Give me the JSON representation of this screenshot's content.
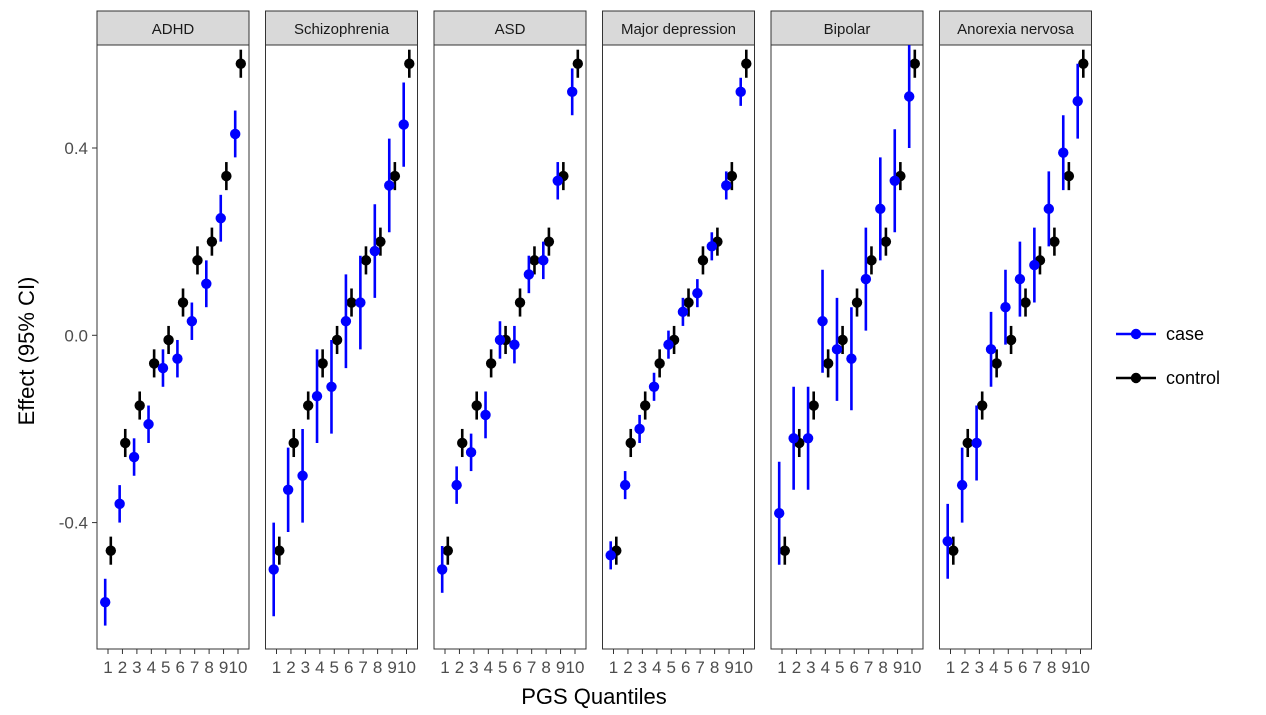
{
  "chart_data": {
    "type": "scatter",
    "title": "",
    "xlabel": "PGS Quantiles",
    "ylabel": "Effect (95% CI)",
    "ylim": [
      -0.67,
      0.62
    ],
    "y_ticks": [
      "-0.4",
      "0.0",
      "0.4"
    ],
    "y_tick_values": [
      -0.4,
      0.0,
      0.4
    ],
    "x": [
      1,
      2,
      3,
      4,
      5,
      6,
      7,
      8,
      9,
      10
    ],
    "x_tick_labels": [
      "1",
      "2",
      "3",
      "4",
      "5",
      "6",
      "7",
      "8",
      "9",
      "10"
    ],
    "grid": false,
    "legend": {
      "position": "right",
      "entries": [
        {
          "key": "case",
          "label": "case",
          "color": "#0000ff"
        },
        {
          "key": "control",
          "label": "control",
          "color": "#000000"
        }
      ]
    },
    "control": {
      "values": [
        -0.46,
        -0.23,
        -0.15,
        -0.06,
        -0.01,
        0.07,
        0.16,
        0.2,
        0.34,
        0.58
      ],
      "ci": [
        0.03,
        0.03,
        0.03,
        0.03,
        0.03,
        0.03,
        0.03,
        0.03,
        0.03,
        0.03
      ]
    },
    "panels": [
      {
        "name": "ADHD",
        "case_values": [
          -0.57,
          -0.36,
          -0.26,
          -0.19,
          -0.07,
          -0.05,
          0.03,
          0.11,
          0.25,
          0.43
        ],
        "case_ci": [
          0.05,
          0.04,
          0.04,
          0.04,
          0.04,
          0.04,
          0.04,
          0.05,
          0.05,
          0.05
        ]
      },
      {
        "name": "Schizophrenia",
        "case_values": [
          -0.5,
          -0.33,
          -0.3,
          -0.13,
          -0.11,
          0.03,
          0.07,
          0.18,
          0.32,
          0.45
        ],
        "case_ci": [
          0.1,
          0.09,
          0.1,
          0.1,
          0.1,
          0.1,
          0.1,
          0.1,
          0.1,
          0.09
        ]
      },
      {
        "name": "ASD",
        "case_values": [
          -0.5,
          -0.32,
          -0.25,
          -0.17,
          -0.01,
          -0.02,
          0.13,
          0.16,
          0.33,
          0.52
        ],
        "case_ci": [
          0.05,
          0.04,
          0.04,
          0.05,
          0.04,
          0.04,
          0.04,
          0.04,
          0.04,
          0.05
        ]
      },
      {
        "name": "Major depression",
        "case_values": [
          -0.47,
          -0.32,
          -0.2,
          -0.11,
          -0.02,
          0.05,
          0.09,
          0.19,
          0.32,
          0.52
        ],
        "case_ci": [
          0.03,
          0.03,
          0.03,
          0.03,
          0.03,
          0.03,
          0.03,
          0.03,
          0.03,
          0.03
        ]
      },
      {
        "name": "Bipolar",
        "case_values": [
          -0.38,
          -0.22,
          -0.22,
          0.03,
          -0.03,
          -0.05,
          0.12,
          0.27,
          0.33,
          0.51
        ],
        "case_ci": [
          0.11,
          0.11,
          0.11,
          0.11,
          0.11,
          0.11,
          0.11,
          0.11,
          0.11,
          0.11
        ]
      },
      {
        "name": "Anorexia nervosa",
        "case_values": [
          -0.44,
          -0.32,
          -0.23,
          -0.03,
          0.06,
          0.12,
          0.15,
          0.27,
          0.39,
          0.5
        ],
        "case_ci": [
          0.08,
          0.08,
          0.08,
          0.08,
          0.08,
          0.08,
          0.08,
          0.08,
          0.08,
          0.08
        ]
      }
    ]
  }
}
